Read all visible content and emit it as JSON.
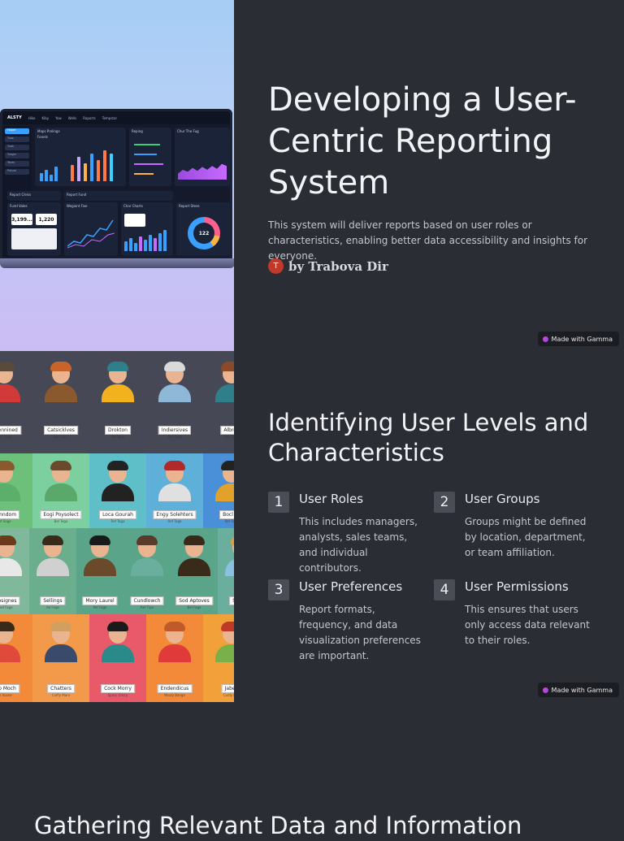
{
  "slide1": {
    "title": "Developing a User-Centric Reporting System",
    "subtitle": "This system will deliver reports based on user roles or characteristics, enabling better data accessibility and insights for everyone.",
    "author_initial": "T",
    "author": "by Trabova Dir",
    "badge": "Made with Gamma",
    "dashboard": {
      "logo": "ALSTY",
      "nav": [
        "Hike",
        "Kiby",
        "Yow",
        "Wells",
        "Raports",
        "Tempstar"
      ],
      "sidebar": [
        "Haper",
        "Tuse",
        "Tuok",
        "Tusgin",
        "Texts",
        "Puluss"
      ],
      "panels": [
        "Maps Prelings",
        "Fonels",
        "Reping",
        "Chur The Fug",
        "Report Cleiss",
        "Report Fund",
        "Furel Vales",
        "Wegiont Fixe",
        "Char Charts",
        "Report Stees"
      ],
      "stats": [
        "3,199...",
        "1,220",
        "122"
      ]
    }
  },
  "slide2": {
    "title": "Identifying User Levels and Characteristics",
    "items": [
      {
        "num": "1",
        "title": "User Roles",
        "desc": "This includes managers, analysts, sales teams, and individual contributors."
      },
      {
        "num": "2",
        "title": "User Groups",
        "desc": "Groups might be defined by location, department, or team affiliation."
      },
      {
        "num": "3",
        "title": "User Preferences",
        "desc": "Report formats, frequency, and data visualization preferences are important."
      },
      {
        "num": "4",
        "title": "User Permissions",
        "desc": "This ensures that users only access data relevant to their roles."
      }
    ],
    "badge": "Made with Gamma",
    "people_rows": [
      {
        "bg": "#464955",
        "people": [
          {
            "name": "Indennined",
            "sub": "Ref Cago",
            "hair": "#5a4a3a",
            "shirt": "#d23a3a",
            "bg": "#464955"
          },
          {
            "name": "Catsicklves",
            "sub": "Ror Cape",
            "hair": "#c8642a",
            "shirt": "#8a5a2e",
            "bg": "#464955"
          },
          {
            "name": "Drokton",
            "sub": "Ter Tape",
            "hair": "#2f7f8a",
            "shirt": "#f2b21e",
            "bg": "#464955"
          },
          {
            "name": "Indiersives",
            "sub": "Ref Tape",
            "hair": "#d9d9d9",
            "shirt": "#8fb7d8",
            "bg": "#464955"
          },
          {
            "name": "Albroe",
            "sub": "Hay Tupe",
            "hair": "#8a4a2a",
            "shirt": "#2f7f8a",
            "bg": "#464955"
          }
        ]
      },
      {
        "bg": "#4ea85f",
        "people": [
          {
            "name": "Sienndom",
            "sub": "Pef Sage",
            "hair": "#8a5a2e",
            "shirt": "#5cae6b",
            "bg": "#6cc07a"
          },
          {
            "name": "Eogi Poysolect",
            "sub": "Bel Tega",
            "hair": "#6a4a2a",
            "shirt": "#5aa86a",
            "bg": "#7cd0a0"
          },
          {
            "name": "Loca Gourah",
            "sub": "Ref Taga",
            "hair": "#222222",
            "shirt": "#222222",
            "bg": "#5fbfc8"
          },
          {
            "name": "Engy Solehters",
            "sub": "Ref Tage",
            "hair": "#b02a2a",
            "shirt": "#e0e0e0",
            "bg": "#5fb0d8"
          },
          {
            "name": "Bocl Ilo",
            "sub": "Ref Topy",
            "hair": "#222222",
            "shirt": "#e2a12a",
            "bg": "#4a90d8"
          }
        ]
      },
      {
        "bg": "#5a9f8a",
        "people": [
          {
            "name": "Irosignes",
            "sub": "Aof Fage",
            "hair": "#6a3a1a",
            "shirt": "#e8e8e8",
            "bg": "#7fb89a"
          },
          {
            "name": "Sellings",
            "sub": "Ae Fege",
            "hair": "#3a2a1a",
            "shirt": "#d0d0d0",
            "bg": "#6aae8e"
          },
          {
            "name": "Mory Laurel",
            "sub": "Pef Fage",
            "hair": "#1a1a1a",
            "shirt": "#6a4a2a",
            "bg": "#5aa48a"
          },
          {
            "name": "Cundlowch",
            "sub": "Ref Tipe",
            "hair": "#5a3a2a",
            "shirt": "#6aae9e",
            "bg": "#5aa48a"
          },
          {
            "name": "Sod Aptoves",
            "sub": "Bel Fage",
            "hair": "#3a2a1a",
            "shirt": "#3a2a1a",
            "bg": "#5aa48a"
          },
          {
            "name": "Sort Se",
            "sub": "Per Fage",
            "hair": "#e0a040",
            "shirt": "#8ac0e0",
            "bg": "#6aae9e"
          }
        ]
      },
      {
        "bg": "#f08a40",
        "people": [
          {
            "name": "Aup Moch",
            "sub": "Ter Vuose",
            "hair": "#3a2a1a",
            "shirt": "#e04a3a",
            "bg": "#f28a3a"
          },
          {
            "name": "Chatters",
            "sub": "Calfly Mara",
            "hair": "#d0a060",
            "shirt": "#3a4a6a",
            "bg": "#f29a4a"
          },
          {
            "name": "Cock Morry",
            "sub": "Spery Uassy",
            "hair": "#1a1a1a",
            "shirt": "#2a8a8a",
            "bg": "#e85a6a"
          },
          {
            "name": "Endendicus",
            "sub": "Mealy Bange",
            "hair": "#c05a2a",
            "shirt": "#e03a3a",
            "bg": "#f28a3a"
          },
          {
            "name": "Jaben",
            "sub": "Cudly Duy",
            "hair": "#c03a2a",
            "shirt": "#7ab04a",
            "bg": "#f2a03a"
          }
        ]
      }
    ]
  },
  "slide3": {
    "title": "Gathering Relevant Data and Information"
  }
}
